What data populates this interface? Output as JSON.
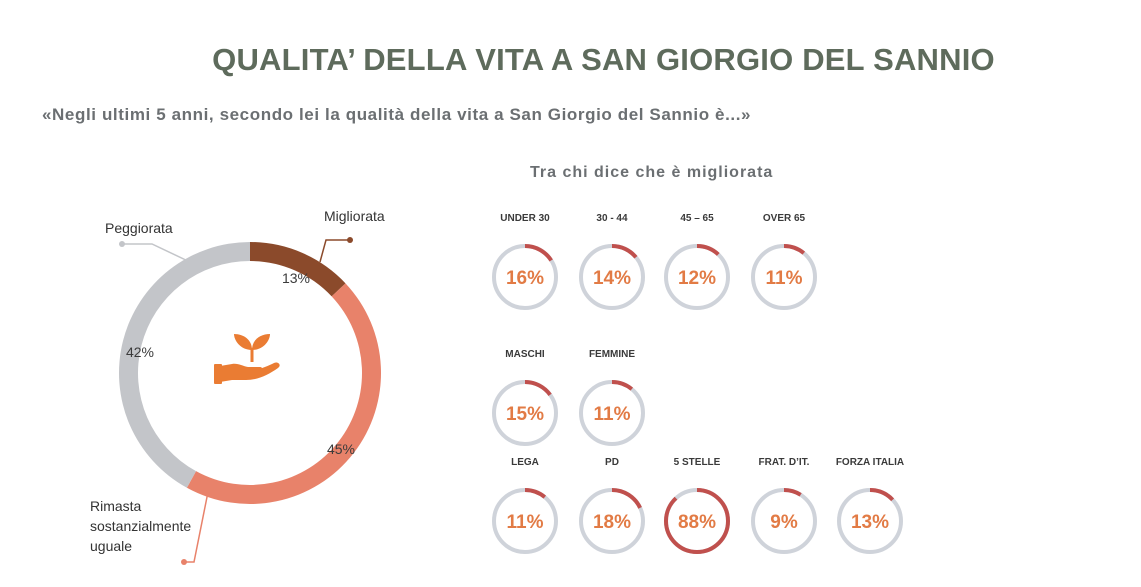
{
  "title": "QUALITA’ DELLA VITA A SAN GIORGIO DEL SANNIO",
  "question": "«Negli ultimi 5 anni, secondo lei la qualità della vita a San Giorgio del Sannio è...»",
  "subtitle": "Tra chi dice che è migliorata",
  "icon": "hand-plant-icon",
  "colors": {
    "migliorata": "#8b4a2b",
    "rimasta": "#e8826a",
    "peggiorata": "#c3c5c9",
    "ring_track": "#cfd3da",
    "ring_fill": "#c0504d",
    "value_text": "#e27b45"
  },
  "chart_data": [
    {
      "type": "pie",
      "variant": "donut",
      "categories": [
        "Migliorata",
        "Rimasta sostanzialmente uguale",
        "Peggiorata"
      ],
      "values": [
        13,
        45,
        42
      ],
      "labels": [
        "13%",
        "45%",
        "42%"
      ],
      "legend_lines": {
        "Migliorata": [
          "Migliorata"
        ],
        "Rimasta sostanzialmente uguale": [
          "Rimasta",
          "sostanzialmente",
          "uguale"
        ],
        "Peggiorata": [
          "Peggiorata"
        ]
      }
    },
    {
      "type": "pie",
      "variant": "progress-rings",
      "title": "Tra chi dice che è migliorata",
      "groups": [
        {
          "items": [
            {
              "label": "UNDER 30",
              "value": 16,
              "text": "16%"
            },
            {
              "label": "30 - 44",
              "value": 14,
              "text": "14%"
            },
            {
              "label": "45 – 65",
              "value": 12,
              "text": "12%"
            },
            {
              "label": "OVER 65",
              "value": 11,
              "text": "11%"
            }
          ]
        },
        {
          "items": [
            {
              "label": "MASCHI",
              "value": 15,
              "text": "15%"
            },
            {
              "label": "FEMMINE",
              "value": 11,
              "text": "11%"
            }
          ]
        },
        {
          "items": [
            {
              "label": "LEGA",
              "value": 11,
              "text": "11%"
            },
            {
              "label": "PD",
              "value": 18,
              "text": "18%"
            },
            {
              "label": "5 STELLE",
              "value": 88,
              "text": "88%"
            },
            {
              "label": "FRAT. D’IT.",
              "value": 9,
              "text": "9%"
            },
            {
              "label": "FORZA ITALIA",
              "value": 13,
              "text": "13%"
            }
          ]
        }
      ]
    }
  ]
}
